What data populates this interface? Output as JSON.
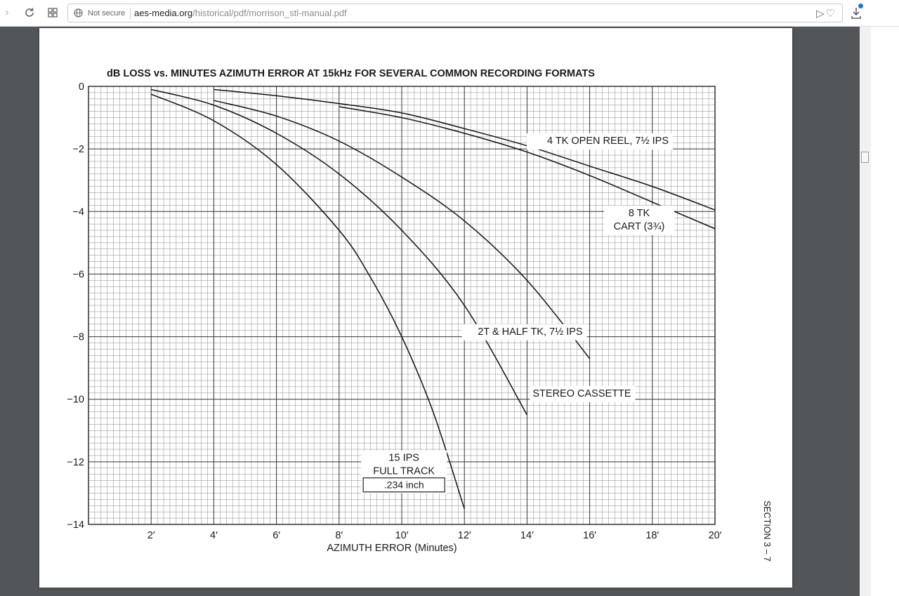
{
  "browser": {
    "security_label": "Not secure",
    "url_host": "aes-media.org",
    "url_path": "/historical/pdf/morrison_stl-manual.pdf",
    "icons": [
      "forward-icon",
      "reload-icon",
      "apps-grid-icon",
      "globe-icon",
      "send-icon",
      "favorite-icon",
      "download-icon"
    ],
    "accent_color": "#1a73e8"
  },
  "page": {
    "section_label": "SECTION 3 – 7"
  },
  "chart_data": {
    "type": "line",
    "title": "dB LOSS vs. MINUTES AZIMUTH ERROR AT 15kHz FOR SEVERAL COMMON RECORDING FORMATS",
    "xlabel": "AZIMUTH ERROR (Minutes)",
    "ylabel": "",
    "xlim": [
      0,
      20
    ],
    "ylim": [
      -14,
      0
    ],
    "grid": true,
    "x_ticks": [
      {
        "v": 2,
        "label": "2′"
      },
      {
        "v": 4,
        "label": "4′"
      },
      {
        "v": 6,
        "label": "6′"
      },
      {
        "v": 8,
        "label": "8′"
      },
      {
        "v": 10,
        "label": "10′"
      },
      {
        "v": 12,
        "label": "12′"
      },
      {
        "v": 14,
        "label": "14′"
      },
      {
        "v": 16,
        "label": "16′"
      },
      {
        "v": 18,
        "label": "18′"
      },
      {
        "v": 20,
        "label": "20′"
      }
    ],
    "y_ticks": [
      {
        "v": 0,
        "label": "0"
      },
      {
        "v": -2,
        "label": "−2"
      },
      {
        "v": -4,
        "label": "−4"
      },
      {
        "v": -6,
        "label": "−6"
      },
      {
        "v": -8,
        "label": "−8"
      },
      {
        "v": -10,
        "label": "−10"
      },
      {
        "v": -12,
        "label": "−12"
      },
      {
        "v": -14,
        "label": "−14"
      }
    ],
    "series": [
      {
        "name": "4 TK OPEN REEL, 7½ IPS",
        "x": [
          4,
          6,
          8,
          10,
          12,
          14,
          16,
          18,
          20
        ],
        "y": [
          -0.1,
          -0.3,
          -0.55,
          -0.85,
          -1.35,
          -1.9,
          -2.55,
          -3.2,
          -3.95
        ]
      },
      {
        "name": "8 TK CART (3¾)",
        "x": [
          8,
          10,
          12,
          14,
          16,
          18,
          20
        ],
        "y": [
          -0.65,
          -1.0,
          -1.5,
          -2.1,
          -2.85,
          -3.7,
          -4.55
        ]
      },
      {
        "name": "2T & HALF TK, 7½ IPS",
        "x": [
          4,
          6,
          8,
          10,
          12,
          14,
          16
        ],
        "y": [
          -0.45,
          -0.95,
          -1.75,
          -2.9,
          -4.3,
          -6.2,
          -8.7
        ]
      },
      {
        "name": "STEREO CASSETTE",
        "x": [
          2,
          4,
          6,
          8,
          10,
          12,
          14
        ],
        "y": [
          -0.1,
          -0.6,
          -1.5,
          -2.8,
          -4.6,
          -7.0,
          -10.5
        ]
      },
      {
        "name": "15 IPS FULL TRACK",
        "x": [
          2,
          4,
          6,
          8,
          9,
          10,
          11,
          12
        ],
        "y": [
          -0.25,
          -1.1,
          -2.5,
          -4.6,
          -6.1,
          -8.0,
          -10.4,
          -13.5
        ]
      }
    ],
    "annotations": [
      {
        "series": 0,
        "lines": [
          "4 TK OPEN REEL, 7½ IPS"
        ]
      },
      {
        "series": 1,
        "lines": [
          "8 TK",
          "CART (3¾)"
        ]
      },
      {
        "series": 2,
        "lines": [
          "2T & HALF TK, 7½ IPS"
        ]
      },
      {
        "series": 3,
        "lines": [
          "STEREO CASSETTE"
        ]
      },
      {
        "series": 4,
        "lines": [
          "15  IPS",
          "FULL  TRACK"
        ],
        "boxed_line": ".234 inch"
      }
    ]
  }
}
